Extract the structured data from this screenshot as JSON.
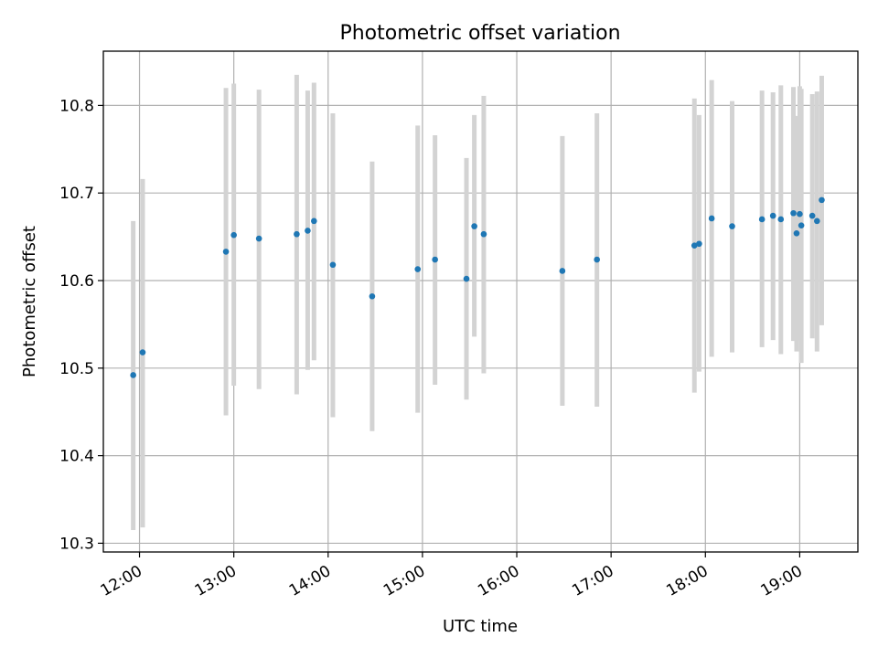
{
  "chart_data": {
    "type": "scatter",
    "title": "Photometric offset variation",
    "xlabel": "UTC time",
    "ylabel": "Photometric offset",
    "x_ticks": [
      "12:00",
      "13:00",
      "14:00",
      "15:00",
      "16:00",
      "17:00",
      "18:00",
      "19:00"
    ],
    "y_ticks": [
      "10.3",
      "10.4",
      "10.5",
      "10.6",
      "10.7",
      "10.8"
    ],
    "xlim": [
      "11:37",
      "19:37"
    ],
    "ylim": [
      10.29,
      10.862
    ],
    "grid": true,
    "point_color": "#1f77b4",
    "errorbar_color": "#d3d3d3",
    "points": [
      {
        "time": "11:56",
        "value": 10.492,
        "low": 10.315,
        "high": 10.668
      },
      {
        "time": "12:02",
        "value": 10.518,
        "low": 10.318,
        "high": 10.716
      },
      {
        "time": "12:55",
        "value": 10.633,
        "low": 10.446,
        "high": 10.82
      },
      {
        "time": "13:00",
        "value": 10.652,
        "low": 10.48,
        "high": 10.825
      },
      {
        "time": "13:16",
        "value": 10.648,
        "low": 10.476,
        "high": 10.818
      },
      {
        "time": "13:40",
        "value": 10.653,
        "low": 10.47,
        "high": 10.835
      },
      {
        "time": "13:47",
        "value": 10.657,
        "low": 10.498,
        "high": 10.817
      },
      {
        "time": "13:51",
        "value": 10.668,
        "low": 10.509,
        "high": 10.826
      },
      {
        "time": "14:03",
        "value": 10.618,
        "low": 10.444,
        "high": 10.791
      },
      {
        "time": "14:28",
        "value": 10.582,
        "low": 10.428,
        "high": 10.736
      },
      {
        "time": "14:57",
        "value": 10.613,
        "low": 10.449,
        "high": 10.777
      },
      {
        "time": "15:08",
        "value": 10.624,
        "low": 10.481,
        "high": 10.766
      },
      {
        "time": "15:28",
        "value": 10.602,
        "low": 10.464,
        "high": 10.74
      },
      {
        "time": "15:33",
        "value": 10.662,
        "low": 10.536,
        "high": 10.789
      },
      {
        "time": "15:39",
        "value": 10.653,
        "low": 10.494,
        "high": 10.811
      },
      {
        "time": "16:29",
        "value": 10.611,
        "low": 10.457,
        "high": 10.765
      },
      {
        "time": "16:51",
        "value": 10.624,
        "low": 10.456,
        "high": 10.791
      },
      {
        "time": "17:53",
        "value": 10.64,
        "low": 10.472,
        "high": 10.808
      },
      {
        "time": "17:56",
        "value": 10.642,
        "low": 10.496,
        "high": 10.789
      },
      {
        "time": "18:04",
        "value": 10.671,
        "low": 10.513,
        "high": 10.829
      },
      {
        "time": "18:17",
        "value": 10.662,
        "low": 10.518,
        "high": 10.805
      },
      {
        "time": "18:36",
        "value": 10.67,
        "low": 10.524,
        "high": 10.817
      },
      {
        "time": "18:43",
        "value": 10.674,
        "low": 10.532,
        "high": 10.815
      },
      {
        "time": "18:48",
        "value": 10.67,
        "low": 10.516,
        "high": 10.823
      },
      {
        "time": "18:56",
        "value": 10.677,
        "low": 10.531,
        "high": 10.821
      },
      {
        "time": "18:58",
        "value": 10.654,
        "low": 10.519,
        "high": 10.788
      },
      {
        "time": "19:00",
        "value": 10.676,
        "low": 10.532,
        "high": 10.822
      },
      {
        "time": "19:01",
        "value": 10.663,
        "low": 10.506,
        "high": 10.819
      },
      {
        "time": "19:08",
        "value": 10.674,
        "low": 10.534,
        "high": 10.813
      },
      {
        "time": "19:11",
        "value": 10.668,
        "low": 10.519,
        "high": 10.816
      },
      {
        "time": "19:14",
        "value": 10.692,
        "low": 10.549,
        "high": 10.834
      }
    ]
  }
}
